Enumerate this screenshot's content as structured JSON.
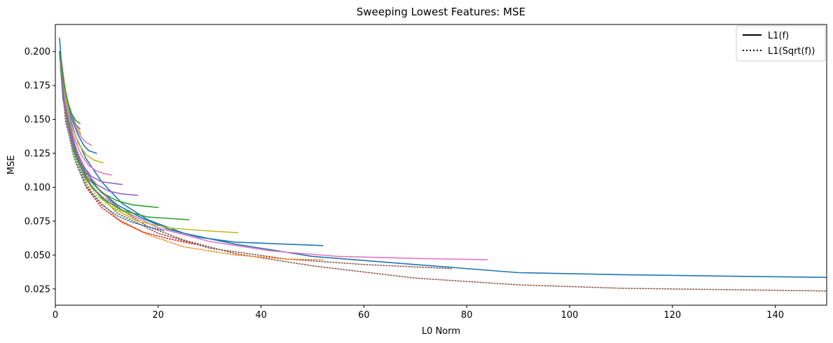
{
  "chart_data": {
    "type": "line",
    "title": "Sweeping Lowest Features: MSE",
    "xlabel": "L0 Norm",
    "ylabel": "MSE",
    "xlim": [
      0,
      150
    ],
    "ylim": [
      0.013,
      0.22
    ],
    "xticks": [
      0,
      20,
      40,
      60,
      80,
      100,
      120,
      140
    ],
    "yticks": [
      0.025,
      0.05,
      0.075,
      0.1,
      0.125,
      0.15,
      0.175,
      0.2
    ],
    "ytick_labels": [
      "0.025",
      "0.050",
      "0.075",
      "0.100",
      "0.125",
      "0.150",
      "0.175",
      "0.200"
    ],
    "grid": false,
    "legend_position": "upper right",
    "legend": [
      {
        "label": "L1(f)",
        "style": "solid"
      },
      {
        "label": "L1(Sqrt(f))",
        "style": "dotted"
      }
    ],
    "series": [
      {
        "color": "#1f77b4",
        "style": "solid",
        "x": [
          0.8,
          1.5,
          2.5,
          4,
          6,
          9,
          13,
          18,
          25,
          35,
          50,
          70,
          90,
          110,
          130,
          150
        ],
        "y": [
          0.21,
          0.178,
          0.155,
          0.137,
          0.121,
          0.104,
          0.088,
          0.076,
          0.066,
          0.058,
          0.049,
          0.043,
          0.037,
          0.0355,
          0.0345,
          0.0335
        ]
      },
      {
        "color": "#8c564b",
        "style": "dotted",
        "x": [
          0.8,
          1.5,
          2.5,
          4,
          6,
          9,
          13,
          18,
          25,
          35,
          50,
          70,
          90,
          110,
          130,
          150
        ],
        "y": [
          0.2,
          0.168,
          0.145,
          0.125,
          0.11,
          0.096,
          0.083,
          0.071,
          0.061,
          0.051,
          0.042,
          0.033,
          0.028,
          0.0255,
          0.0245,
          0.0235
        ]
      },
      {
        "color": "#1f77b4",
        "style": "solid",
        "x": [
          0.8,
          1.5,
          3,
          5,
          8,
          12,
          17,
          22,
          28,
          35,
          45,
          52
        ],
        "y": [
          0.2,
          0.165,
          0.138,
          0.118,
          0.1,
          0.087,
          0.077,
          0.069,
          0.063,
          0.0595,
          0.058,
          0.057
        ]
      },
      {
        "color": "#e377c2",
        "style": "solid",
        "x": [
          1,
          2,
          4,
          7,
          12,
          20,
          30,
          42,
          55,
          70,
          84
        ],
        "y": [
          0.197,
          0.16,
          0.128,
          0.104,
          0.085,
          0.07,
          0.06,
          0.053,
          0.049,
          0.0475,
          0.0465
        ]
      },
      {
        "color": "#8c564b",
        "style": "dotted",
        "x": [
          1,
          2,
          4,
          7,
          12,
          20,
          30,
          45,
          60,
          77
        ],
        "y": [
          0.196,
          0.155,
          0.123,
          0.101,
          0.081,
          0.066,
          0.055,
          0.047,
          0.043,
          0.04
        ]
      },
      {
        "color": "#ff7f0e",
        "style": "dotted",
        "x": [
          1,
          2,
          4,
          7,
          12,
          18,
          25,
          35,
          45,
          52
        ],
        "y": [
          0.19,
          0.15,
          0.12,
          0.096,
          0.077,
          0.065,
          0.056,
          0.05,
          0.047,
          0.0465
        ]
      },
      {
        "color": "#bcbd22",
        "style": "solid",
        "x": [
          1,
          2,
          4,
          7,
          11,
          16,
          22,
          29,
          35.5
        ],
        "y": [
          0.193,
          0.153,
          0.122,
          0.1,
          0.085,
          0.075,
          0.07,
          0.068,
          0.0665
        ]
      },
      {
        "color": "#d62728",
        "style": "dotted",
        "x": [
          1,
          2,
          4,
          6,
          9,
          13,
          17,
          22,
          27
        ],
        "y": [
          0.188,
          0.148,
          0.118,
          0.1,
          0.085,
          0.074,
          0.067,
          0.062,
          0.058
        ]
      },
      {
        "color": "#2ca02c",
        "style": "solid",
        "x": [
          1,
          2,
          3.5,
          6,
          9,
          13,
          18,
          22,
          26
        ],
        "y": [
          0.195,
          0.155,
          0.128,
          0.106,
          0.092,
          0.083,
          0.078,
          0.077,
          0.076
        ]
      },
      {
        "color": "#1f77b4",
        "style": "dotted",
        "x": [
          1,
          2,
          3.5,
          6,
          9,
          12,
          15,
          18,
          21
        ],
        "y": [
          0.19,
          0.15,
          0.123,
          0.101,
          0.087,
          0.079,
          0.074,
          0.071,
          0.068
        ]
      },
      {
        "color": "#2ca02c",
        "style": "solid",
        "x": [
          1,
          2,
          3.5,
          6,
          9,
          12,
          15,
          17.5,
          20
        ],
        "y": [
          0.198,
          0.158,
          0.13,
          0.108,
          0.096,
          0.09,
          0.087,
          0.086,
          0.085
        ]
      },
      {
        "color": "#bcbd22",
        "style": "dotted",
        "x": [
          1,
          2,
          3.5,
          6,
          8,
          10,
          12.5,
          15
        ],
        "y": [
          0.192,
          0.152,
          0.124,
          0.103,
          0.094,
          0.088,
          0.083,
          0.08
        ]
      },
      {
        "color": "#9467bd",
        "style": "solid",
        "x": [
          1,
          2,
          3.5,
          5.5,
          8,
          10.5,
          13,
          16
        ],
        "y": [
          0.196,
          0.158,
          0.132,
          0.113,
          0.102,
          0.097,
          0.095,
          0.094
        ]
      },
      {
        "color": "#9467bd",
        "style": "dotted",
        "x": [
          1,
          2,
          3.5,
          5.5,
          7.5,
          9.5,
          11.5
        ],
        "y": [
          0.192,
          0.153,
          0.126,
          0.108,
          0.098,
          0.092,
          0.088
        ]
      },
      {
        "color": "#9467bd",
        "style": "solid",
        "x": [
          1,
          2,
          3.5,
          5,
          7,
          9,
          11,
          13
        ],
        "y": [
          0.197,
          0.162,
          0.135,
          0.118,
          0.108,
          0.104,
          0.103,
          0.102
        ]
      },
      {
        "color": "#e377c2",
        "style": "solid",
        "x": [
          1,
          2,
          3.5,
          5,
          6.5,
          8,
          9.5,
          11
        ],
        "y": [
          0.197,
          0.163,
          0.138,
          0.124,
          0.116,
          0.112,
          0.11,
          0.109
        ]
      },
      {
        "color": "#bcbd22",
        "style": "solid",
        "x": [
          1,
          2,
          3,
          4.5,
          6,
          7.5,
          9.3
        ],
        "y": [
          0.198,
          0.166,
          0.147,
          0.132,
          0.124,
          0.12,
          0.118
        ]
      },
      {
        "color": "#1f77b4",
        "style": "solid",
        "x": [
          1,
          2,
          3,
          4.5,
          5.5,
          6.5,
          8
        ],
        "y": [
          0.198,
          0.17,
          0.152,
          0.138,
          0.131,
          0.127,
          0.125
        ]
      },
      {
        "color": "#e377c2",
        "style": "solid",
        "x": [
          1,
          2,
          3,
          4,
          5,
          6,
          7
        ],
        "y": [
          0.198,
          0.17,
          0.155,
          0.144,
          0.137,
          0.133,
          0.131
        ]
      },
      {
        "color": "#bcbd22",
        "style": "solid",
        "x": [
          1,
          2,
          3,
          4,
          5
        ],
        "y": [
          0.198,
          0.17,
          0.155,
          0.146,
          0.139
        ]
      },
      {
        "color": "#9467bd",
        "style": "solid",
        "x": [
          1,
          1.7,
          2.5,
          3.3,
          4,
          4.8
        ],
        "y": [
          0.198,
          0.176,
          0.161,
          0.152,
          0.146,
          0.143
        ]
      },
      {
        "color": "#2ca02c",
        "style": "solid",
        "x": [
          1,
          1.6,
          2.4,
          3.2,
          4,
          4.8
        ],
        "y": [
          0.198,
          0.178,
          0.163,
          0.154,
          0.149,
          0.147
        ]
      }
    ]
  }
}
